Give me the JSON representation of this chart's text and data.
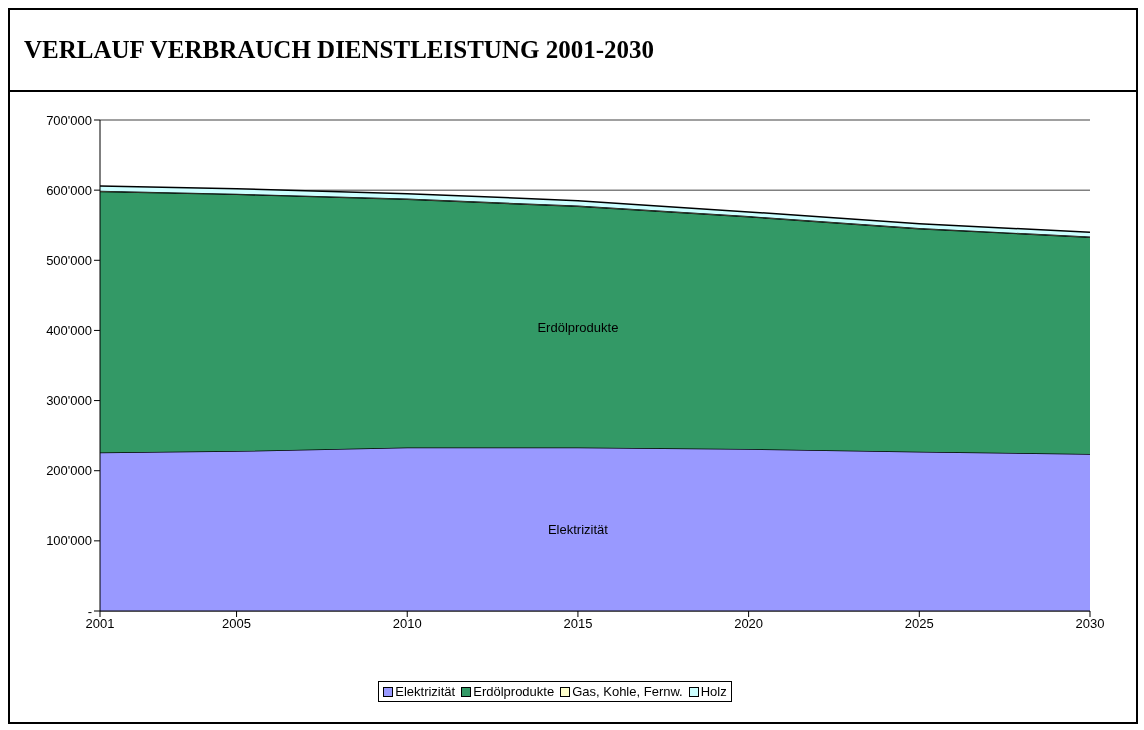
{
  "chart_data": {
    "type": "area",
    "title": "VERLAUF VERBRAUCH DIENSTLEISTUNG 2001-2030",
    "stacked": true,
    "x": [
      2001,
      2005,
      2010,
      2015,
      2020,
      2025,
      2030
    ],
    "xlim": [
      2001,
      2030
    ],
    "xticks": [
      2001,
      2005,
      2010,
      2015,
      2020,
      2025,
      2030
    ],
    "ylim": [
      0,
      700000
    ],
    "yticks": [
      {
        "value": 0,
        "label": "-"
      },
      {
        "value": 100000,
        "label": "100'000"
      },
      {
        "value": 200000,
        "label": "200'000"
      },
      {
        "value": 300000,
        "label": "300'000"
      },
      {
        "value": 400000,
        "label": "400'000"
      },
      {
        "value": 500000,
        "label": "500'000"
      },
      {
        "value": 600000,
        "label": "600'000"
      },
      {
        "value": 700000,
        "label": "700'000"
      }
    ],
    "grid": "y",
    "legend": "bottom",
    "series": [
      {
        "name": "Elektrizität",
        "color": "#9999ff",
        "values": [
          226000,
          228000,
          233000,
          233000,
          231000,
          227000,
          224000
        ]
      },
      {
        "name": "Erdölprodukte",
        "color": "#339966",
        "values": [
          372000,
          366000,
          354000,
          344000,
          331000,
          318000,
          309000
        ]
      },
      {
        "name": "Gas, Kohle, Fernw.",
        "color": "#ffffcc",
        "values": [
          1000,
          1000,
          1000,
          1000,
          1000,
          1000,
          1000
        ]
      },
      {
        "name": "Holz",
        "color": "#ccffff",
        "values": [
          7000,
          7000,
          7000,
          7000,
          6000,
          6000,
          6000
        ]
      }
    ]
  }
}
